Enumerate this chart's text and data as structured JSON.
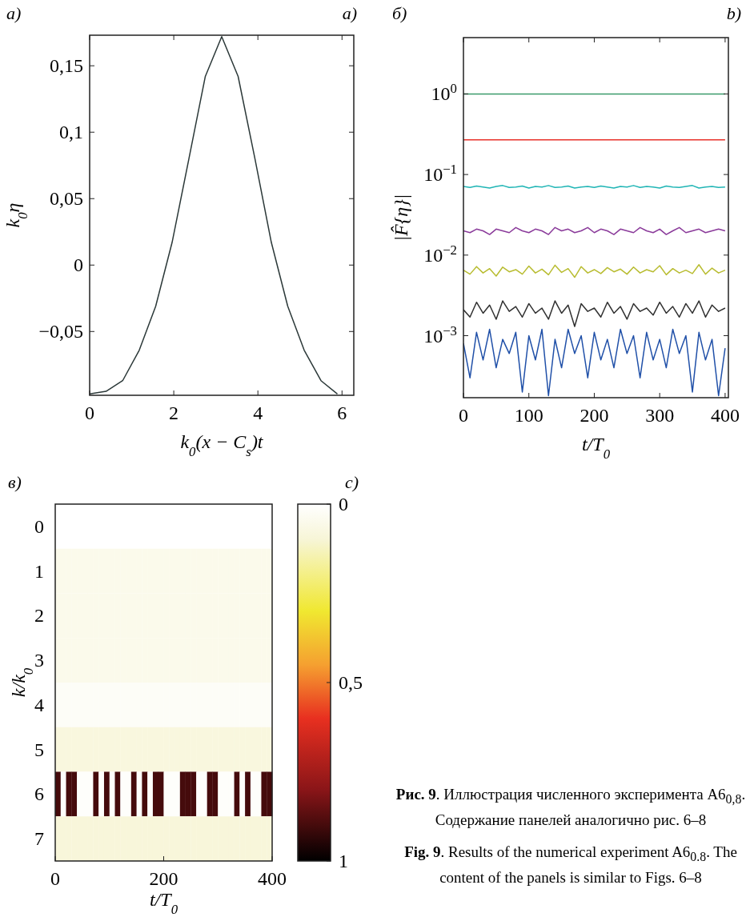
{
  "chart_data": [
    {
      "type": "line",
      "xlabel": "k$_{0}$(x − C$_{s}$)t",
      "ylabel": "k$_{0}$η",
      "annotations": [
        "а)",
        "a)"
      ],
      "x": [
        0,
        0.39,
        0.785,
        1.18,
        1.57,
        1.96,
        2.36,
        2.75,
        3.14,
        3.53,
        3.93,
        4.32,
        4.71,
        5.1,
        5.5,
        5.89
      ],
      "series": [
        {
          "color": "#2b3838",
          "values": [
            -0.097,
            -0.095,
            -0.087,
            -0.064,
            -0.031,
            0.017,
            0.08,
            0.142,
            0.172,
            0.142,
            0.08,
            0.017,
            -0.031,
            -0.064,
            -0.087,
            -0.097
          ]
        }
      ],
      "xlim": [
        0,
        6.28
      ],
      "ylim": [
        -0.098,
        0.173
      ],
      "xticks": [
        0,
        2,
        4,
        6
      ],
      "yticks": [
        {
          "value": -0.05,
          "label": "−0,05"
        },
        0,
        {
          "value": 0.05,
          "label": "0,05"
        },
        {
          "value": 0.1,
          "label": "0,1"
        },
        {
          "value": 0.15,
          "label": "0,15"
        }
      ]
    },
    {
      "type": "line",
      "log": "y",
      "xlabel": "t/T$_{0}$",
      "ylabel": "|F̂{η}|",
      "annotations": [
        "б)",
        "b)"
      ],
      "x": [
        0,
        10,
        20,
        30,
        40,
        50,
        60,
        70,
        80,
        90,
        100,
        110,
        120,
        130,
        140,
        150,
        160,
        170,
        180,
        190,
        200,
        210,
        220,
        230,
        240,
        250,
        260,
        270,
        280,
        290,
        300,
        310,
        320,
        330,
        340,
        350,
        360,
        370,
        380,
        390,
        400
      ],
      "series": [
        {
          "color": "#3a9a6a",
          "values": [
            1,
            1,
            1,
            1,
            1,
            1,
            1,
            1,
            1,
            1,
            1,
            1,
            1,
            1,
            1,
            1,
            1,
            1,
            1,
            1,
            1,
            1,
            1,
            1,
            1,
            1,
            1,
            1,
            1,
            1,
            1,
            1,
            1,
            1,
            1,
            1,
            1,
            1,
            1,
            1,
            1
          ]
        },
        {
          "color": "#e8312a",
          "values": [
            0.27,
            0.27,
            0.27,
            0.27,
            0.27,
            0.27,
            0.27,
            0.27,
            0.27,
            0.27,
            0.27,
            0.27,
            0.27,
            0.27,
            0.27,
            0.27,
            0.27,
            0.27,
            0.27,
            0.27,
            0.27,
            0.27,
            0.27,
            0.27,
            0.27,
            0.27,
            0.27,
            0.27,
            0.27,
            0.27,
            0.27,
            0.27,
            0.27,
            0.27,
            0.27,
            0.27,
            0.27,
            0.27,
            0.27,
            0.27,
            0.27
          ]
        },
        {
          "color": "#20b5b5",
          "values": [
            0.071,
            0.069,
            0.072,
            0.07,
            0.068,
            0.071,
            0.073,
            0.069,
            0.07,
            0.072,
            0.068,
            0.071,
            0.07,
            0.073,
            0.069,
            0.07,
            0.072,
            0.068,
            0.07,
            0.071,
            0.069,
            0.072,
            0.07,
            0.068,
            0.071,
            0.07,
            0.073,
            0.069,
            0.071,
            0.07,
            0.068,
            0.072,
            0.07,
            0.069,
            0.071,
            0.073,
            0.068,
            0.07,
            0.071,
            0.069,
            0.07
          ]
        },
        {
          "color": "#8a3a9a",
          "values": [
            0.02,
            0.019,
            0.021,
            0.02,
            0.018,
            0.021,
            0.02,
            0.019,
            0.022,
            0.02,
            0.019,
            0.021,
            0.02,
            0.018,
            0.022,
            0.02,
            0.021,
            0.019,
            0.02,
            0.022,
            0.019,
            0.021,
            0.02,
            0.018,
            0.021,
            0.02,
            0.019,
            0.022,
            0.02,
            0.019,
            0.021,
            0.018,
            0.02,
            0.022,
            0.019,
            0.02,
            0.021,
            0.019,
            0.02,
            0.021,
            0.02
          ]
        },
        {
          "color": "#b8bc30",
          "values": [
            0.0065,
            0.0058,
            0.0072,
            0.006,
            0.0068,
            0.0055,
            0.0071,
            0.0062,
            0.0066,
            0.0058,
            0.0073,
            0.006,
            0.0067,
            0.0057,
            0.0075,
            0.0061,
            0.0068,
            0.0053,
            0.0072,
            0.006,
            0.0066,
            0.0059,
            0.007,
            0.0062,
            0.0067,
            0.0058,
            0.0071,
            0.006,
            0.0066,
            0.0062,
            0.0074,
            0.0057,
            0.0068,
            0.006,
            0.0065,
            0.0059,
            0.0076,
            0.0058,
            0.0069,
            0.006,
            0.0065
          ]
        },
        {
          "color": "#303030",
          "values": [
            0.0021,
            0.0017,
            0.0026,
            0.0019,
            0.0024,
            0.0016,
            0.0027,
            0.002,
            0.0023,
            0.0017,
            0.0025,
            0.0019,
            0.0022,
            0.0016,
            0.0027,
            0.0019,
            0.0024,
            0.0013,
            0.0025,
            0.002,
            0.0022,
            0.0017,
            0.0026,
            0.0019,
            0.0023,
            0.0016,
            0.0025,
            0.002,
            0.0022,
            0.0018,
            0.0026,
            0.0019,
            0.0023,
            0.0017,
            0.0025,
            0.0019,
            0.0027,
            0.0017,
            0.0024,
            0.002,
            0.0022
          ]
        },
        {
          "color": "#2050a8",
          "values": [
            0.0008,
            0.0003,
            0.0011,
            0.0005,
            0.0012,
            0.0004,
            0.0009,
            0.0006,
            0.0011,
            0.0002,
            0.001,
            0.0005,
            0.0012,
            0.00018,
            0.0009,
            0.0004,
            0.0012,
            0.0006,
            0.001,
            0.0003,
            0.0011,
            0.0005,
            0.0009,
            0.0004,
            0.0012,
            0.0006,
            0.001,
            0.0003,
            0.0011,
            0.0005,
            0.0009,
            0.0004,
            0.0012,
            0.0006,
            0.001,
            0.0002,
            0.0011,
            0.0005,
            0.0009,
            0.00018,
            0.0007
          ]
        }
      ],
      "xlim": [
        0,
        405
      ],
      "ylim": [
        0.00017,
        5
      ],
      "xticks": [
        0,
        100,
        200,
        300,
        400
      ],
      "yticks": [
        {
          "value": 0.001,
          "label": "10$^{−3}$"
        },
        {
          "value": 0.01,
          "label": "10$^{−2}$"
        },
        {
          "value": 0.1,
          "label": "10$^{−1}$"
        },
        {
          "value": 1,
          "label": "10$^{0}$"
        }
      ]
    },
    {
      "type": "heatmap",
      "xlabel": "t/T$_{0}$",
      "ylabel": "k/k$_{0}$",
      "annotations": [
        "в)",
        "c)"
      ],
      "x": [
        5,
        15,
        25,
        35,
        45,
        55,
        65,
        75,
        85,
        95,
        105,
        115,
        125,
        135,
        145,
        155,
        165,
        175,
        185,
        195,
        205,
        215,
        225,
        235,
        245,
        255,
        265,
        275,
        285,
        295,
        305,
        315,
        325,
        335,
        345,
        355,
        365,
        375,
        385,
        395
      ],
      "xlim": [
        0,
        400
      ],
      "xticks": [
        0,
        200,
        400
      ],
      "y_categories": [
        "0",
        "1",
        "2",
        "3",
        "4",
        "5",
        "6",
        "7"
      ],
      "cells": [
        [
          0,
          0,
          0,
          0,
          0,
          0,
          0,
          0,
          0,
          0,
          0,
          0,
          0,
          0,
          0,
          0,
          0,
          0,
          0,
          0,
          0,
          0,
          0,
          0,
          0,
          0,
          0,
          0,
          0,
          0,
          0,
          0,
          0,
          0,
          0,
          0,
          0,
          0,
          0,
          0
        ],
        [
          0.05,
          0.05,
          0.05,
          0.05,
          0.05,
          0.05,
          0.05,
          0.05,
          0.05,
          0.05,
          0.05,
          0.05,
          0.05,
          0.05,
          0.05,
          0.05,
          0.05,
          0.05,
          0.05,
          0.05,
          0.05,
          0.05,
          0.05,
          0.05,
          0.05,
          0.05,
          0.05,
          0.05,
          0.05,
          0.05,
          0.05,
          0.05,
          0.05,
          0.05,
          0.05,
          0.05,
          0.05,
          0.05,
          0.05,
          0.05
        ],
        [
          0.05,
          0.05,
          0.05,
          0.05,
          0.05,
          0.05,
          0.05,
          0.05,
          0.05,
          0.05,
          0.05,
          0.05,
          0.05,
          0.05,
          0.05,
          0.05,
          0.05,
          0.05,
          0.05,
          0.05,
          0.05,
          0.05,
          0.05,
          0.05,
          0.05,
          0.05,
          0.05,
          0.05,
          0.05,
          0.05,
          0.05,
          0.05,
          0.05,
          0.05,
          0.05,
          0.05,
          0.05,
          0.05,
          0.05,
          0.05
        ],
        [
          0.05,
          0.05,
          0.05,
          0.05,
          0.05,
          0.05,
          0.05,
          0.05,
          0.05,
          0.05,
          0.05,
          0.05,
          0.05,
          0.05,
          0.05,
          0.05,
          0.05,
          0.05,
          0.05,
          0.05,
          0.05,
          0.05,
          0.05,
          0.05,
          0.05,
          0.05,
          0.05,
          0.05,
          0.05,
          0.05,
          0.05,
          0.05,
          0.05,
          0.05,
          0.05,
          0.05,
          0.05,
          0.05,
          0.05,
          0.05
        ],
        [
          0.02,
          0.02,
          0.02,
          0.02,
          0.02,
          0.02,
          0.02,
          0.02,
          0.02,
          0.02,
          0.02,
          0.02,
          0.02,
          0.02,
          0.02,
          0.02,
          0.02,
          0.02,
          0.02,
          0.02,
          0.02,
          0.02,
          0.02,
          0.02,
          0.02,
          0.02,
          0.02,
          0.02,
          0.02,
          0.02,
          0.02,
          0.02,
          0.02,
          0.02,
          0.02,
          0.02,
          0.02,
          0.02,
          0.02,
          0.02
        ],
        [
          0.08,
          0.08,
          0.08,
          0.08,
          0.08,
          0.08,
          0.08,
          0.08,
          0.08,
          0.08,
          0.08,
          0.08,
          0.08,
          0.08,
          0.08,
          0.08,
          0.08,
          0.08,
          0.08,
          0.08,
          0.08,
          0.08,
          0.08,
          0.08,
          0.08,
          0.08,
          0.08,
          0.08,
          0.08,
          0.08,
          0.08,
          0.08,
          0.08,
          0.08,
          0.08,
          0.08,
          0.08,
          0.08,
          0.08,
          0.08
        ],
        [
          0.9,
          0.01,
          0.9,
          0.9,
          0.01,
          0.01,
          0.01,
          0.9,
          0.01,
          0.9,
          0.01,
          0.9,
          0.01,
          0.01,
          0.9,
          0.01,
          0.9,
          0.01,
          0.9,
          0.9,
          0.01,
          0.01,
          0.01,
          0.9,
          0.9,
          0.9,
          0.01,
          0.01,
          0.9,
          0.9,
          0.01,
          0.01,
          0.01,
          0.9,
          0.01,
          0.9,
          0.01,
          0.01,
          0.9,
          0.9
        ],
        [
          0.09,
          0.09,
          0.09,
          0.09,
          0.09,
          0.09,
          0.09,
          0.09,
          0.09,
          0.09,
          0.09,
          0.09,
          0.09,
          0.09,
          0.09,
          0.09,
          0.09,
          0.09,
          0.09,
          0.09,
          0.09,
          0.09,
          0.09,
          0.09,
          0.09,
          0.09,
          0.09,
          0.09,
          0.09,
          0.09,
          0.09,
          0.09,
          0.09,
          0.09,
          0.09,
          0.09,
          0.09,
          0.09,
          0.09,
          0.09
        ]
      ],
      "clim": [
        0,
        1
      ],
      "cticks": [
        0,
        {
          "value": 0.5,
          "label": "0,5"
        },
        1
      ]
    },
    {
      "type": "other",
      "annotations": [
        "Рис. 9. Иллюстрация численного эксперимента A6$_{0,8}$. Содержание панелей аналогично рис. 6–8",
        "Fig. 9. Results of the numerical experiment A6$_{0.8}$. The content of the panels is similar to Figs. 6–8"
      ]
    }
  ]
}
